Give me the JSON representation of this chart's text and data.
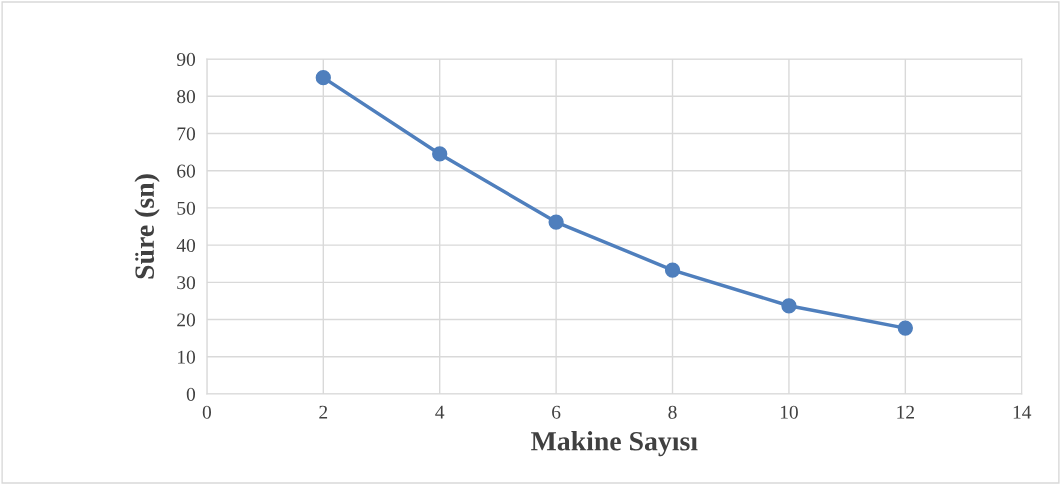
{
  "chart_data": {
    "type": "line",
    "xlabel": "Makine Sayısı",
    "ylabel": "Süre (sn)",
    "x": [
      2,
      4,
      6,
      8,
      10,
      12
    ],
    "series": [
      {
        "color": "#4f7fbd",
        "values": [
          85,
          64.5,
          46.2,
          33.3,
          23.7,
          17.7
        ]
      }
    ],
    "xlim": [
      0,
      14
    ],
    "xticks": [
      0,
      2,
      4,
      6,
      8,
      10,
      12,
      14
    ],
    "ylim": [
      0,
      90
    ],
    "yticks": [
      0,
      10,
      20,
      30,
      40,
      50,
      60,
      70,
      80,
      90
    ],
    "grid": true,
    "legend": false,
    "marker": "circle",
    "line_style": "solid"
  }
}
